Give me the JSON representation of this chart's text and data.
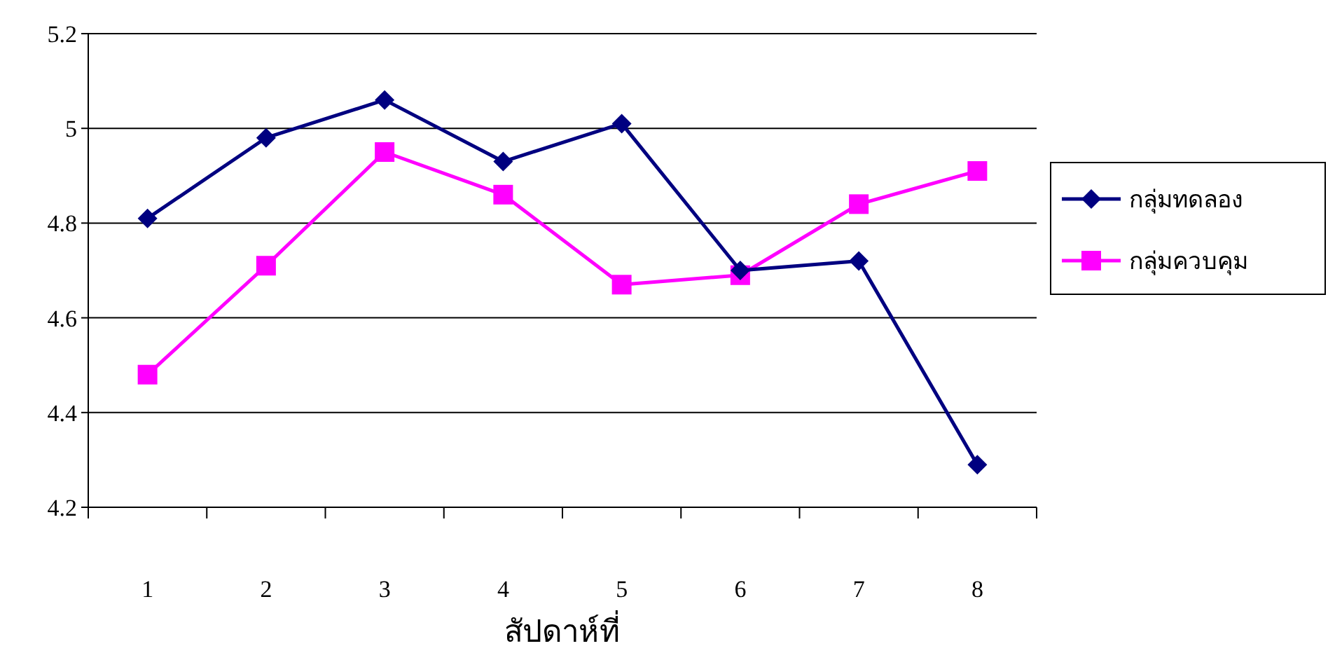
{
  "chart_data": {
    "type": "line",
    "xlabel": "สัปดาห์ที่",
    "categories": [
      "1",
      "2",
      "3",
      "4",
      "5",
      "6",
      "7",
      "8"
    ],
    "series": [
      {
        "name": "กลุ่มทดลอง",
        "color": "#000080",
        "marker": "diamond",
        "values": [
          4.81,
          4.98,
          5.06,
          4.93,
          5.01,
          4.7,
          4.72,
          4.29
        ]
      },
      {
        "name": "กลุ่มควบคุม",
        "color": "#ff00ff",
        "marker": "square",
        "values": [
          4.48,
          4.71,
          4.95,
          4.86,
          4.67,
          4.69,
          4.84,
          4.91
        ]
      }
    ],
    "ylim": [
      4.2,
      5.2
    ],
    "yticks": [
      4.2,
      4.4,
      4.6,
      4.8,
      5,
      5.2
    ],
    "grid": "y",
    "legend": "right",
    "line_style": "solid"
  }
}
